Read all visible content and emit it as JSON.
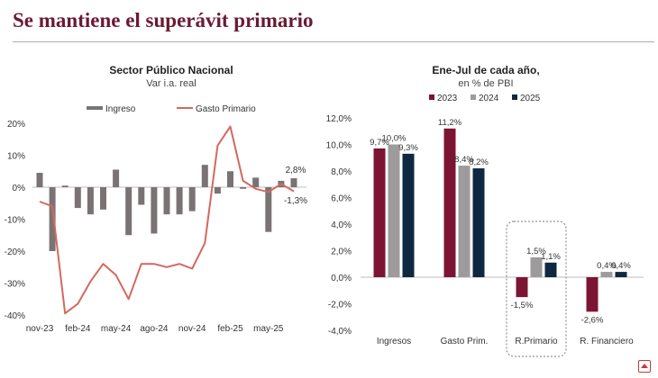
{
  "page": {
    "title": "Se mantiene el superávit primario"
  },
  "colors": {
    "title": "#6a1a33",
    "ingreso": "#7a7374",
    "gasto": "#d2695f",
    "y2023": "#7c1533",
    "y2024": "#9d9b9b",
    "y2025": "#0e2841"
  },
  "chart_data": [
    {
      "type": "bar+line",
      "title": "Sector Público Nacional",
      "subtitle": "Var i.a. real",
      "legend": [
        "Ingreso",
        "Gasto Primario"
      ],
      "legend_position": "top",
      "ylim": [
        -40,
        20
      ],
      "yticks": [
        "20%",
        "10%",
        "0%",
        "-10%",
        "-20%",
        "-30%",
        "-40%"
      ],
      "x_tick_labels": [
        "nov-23",
        "feb-24",
        "may-24",
        "ago-24",
        "nov-24",
        "feb-25",
        "may-25"
      ],
      "x_tick_index": [
        0,
        3,
        6,
        9,
        12,
        15,
        18
      ],
      "series": [
        {
          "name": "Ingreso",
          "kind": "bar",
          "values": [
            4.5,
            -20,
            0.5,
            -6.5,
            -8.5,
            -7,
            5.5,
            -15,
            -5.5,
            -14.5,
            -8.5,
            -8.5,
            -7.5,
            7,
            -2,
            5,
            -0.5,
            3,
            -14,
            2,
            2.8
          ]
        },
        {
          "name": "Gasto Primario",
          "kind": "line",
          "values": [
            -4.5,
            -6,
            -39.5,
            -36.5,
            -29.5,
            -24,
            -27.5,
            -35,
            -24,
            -24,
            -25,
            -24,
            -25.5,
            -17.5,
            13,
            19,
            2,
            -0.5,
            -1.5,
            1,
            -1.3
          ]
        }
      ],
      "annotations": [
        "2,8%",
        "-1,3%"
      ],
      "grid": false
    },
    {
      "type": "bar",
      "title": "Ene-Jul de cada año,",
      "subtitle": "en % de PBI",
      "legend": [
        "2023",
        "2024",
        "2025"
      ],
      "legend_position": "top",
      "categories": [
        "Ingresos",
        "Gasto Prim.",
        "R.Primario",
        "R. Financiero"
      ],
      "ylim": [
        -4,
        12
      ],
      "yticks": [
        "12,0%",
        "10,0%",
        "8,0%",
        "6,0%",
        "4,0%",
        "2,0%",
        "0,0%",
        "-2,0%",
        "-4,0%"
      ],
      "series": [
        {
          "name": "2023",
          "values": [
            9.7,
            11.2,
            -1.5,
            -2.6
          ]
        },
        {
          "name": "2024",
          "values": [
            10.0,
            8.4,
            1.5,
            0.4
          ]
        },
        {
          "name": "2025",
          "values": [
            9.3,
            8.2,
            1.1,
            0.4
          ]
        }
      ],
      "data_labels": [
        [
          "9,7%",
          "11,2%",
          "-1,5%",
          "-2,6%"
        ],
        [
          "10,0%",
          "8,4%",
          "1,5%",
          "0,4%"
        ],
        [
          "9,3%",
          "8,2%",
          "1,1%",
          "0,4%"
        ]
      ],
      "highlighted_category": "R.Primario",
      "grid": false
    }
  ]
}
